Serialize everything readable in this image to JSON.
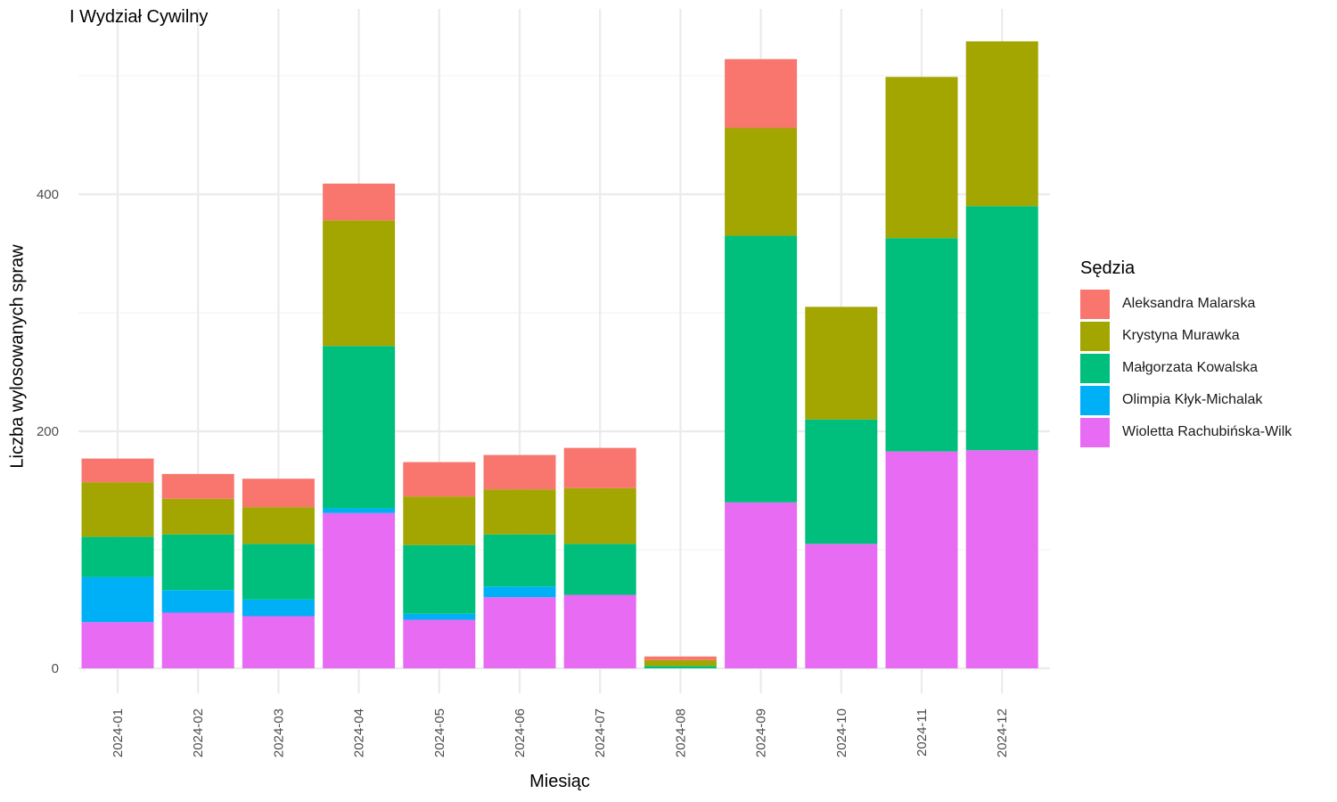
{
  "chart_data": {
    "type": "bar",
    "stacked": true,
    "title": "I Wydział Cywilny",
    "xlabel": "Miesiąc",
    "ylabel": "Liczba wylosowanych spraw",
    "legend_title": "Sędzia",
    "legend_position": "right",
    "grid": true,
    "ylim": [
      0,
      550
    ],
    "yticks": [
      0,
      200,
      400
    ],
    "categories": [
      "2024-01",
      "2024-02",
      "2024-03",
      "2024-04",
      "2024-05",
      "2024-06",
      "2024-07",
      "2024-08",
      "2024-09",
      "2024-10",
      "2024-11",
      "2024-12"
    ],
    "series": [
      {
        "name": "Wioletta Rachubińska-Wilk",
        "color": "#E76BF3",
        "values": [
          39,
          47,
          44,
          131,
          41,
          60,
          62,
          0,
          140,
          105,
          183,
          184
        ]
      },
      {
        "name": "Olimpia Kłyk-Michalak",
        "color": "#00B0F6",
        "values": [
          38,
          19,
          14,
          4,
          5,
          9,
          0,
          0,
          0,
          0,
          0,
          0
        ]
      },
      {
        "name": "Małgorzata Kowalska",
        "color": "#00BF7D",
        "values": [
          34,
          47,
          47,
          137,
          58,
          44,
          43,
          2,
          225,
          105,
          180,
          206
        ]
      },
      {
        "name": "Krystyna Murawka",
        "color": "#A3A500",
        "values": [
          46,
          30,
          31,
          106,
          41,
          38,
          47,
          5,
          91,
          95,
          136,
          139
        ]
      },
      {
        "name": "Aleksandra Malarska",
        "color": "#F8766D",
        "values": [
          20,
          21,
          24,
          31,
          29,
          29,
          34,
          3,
          58,
          0,
          0,
          0
        ]
      }
    ],
    "legend_order": [
      "Aleksandra Malarska",
      "Krystyna Murawka",
      "Małgorzata Kowalska",
      "Olimpia Kłyk-Michalak",
      "Wioletta Rachubińska-Wilk"
    ]
  }
}
